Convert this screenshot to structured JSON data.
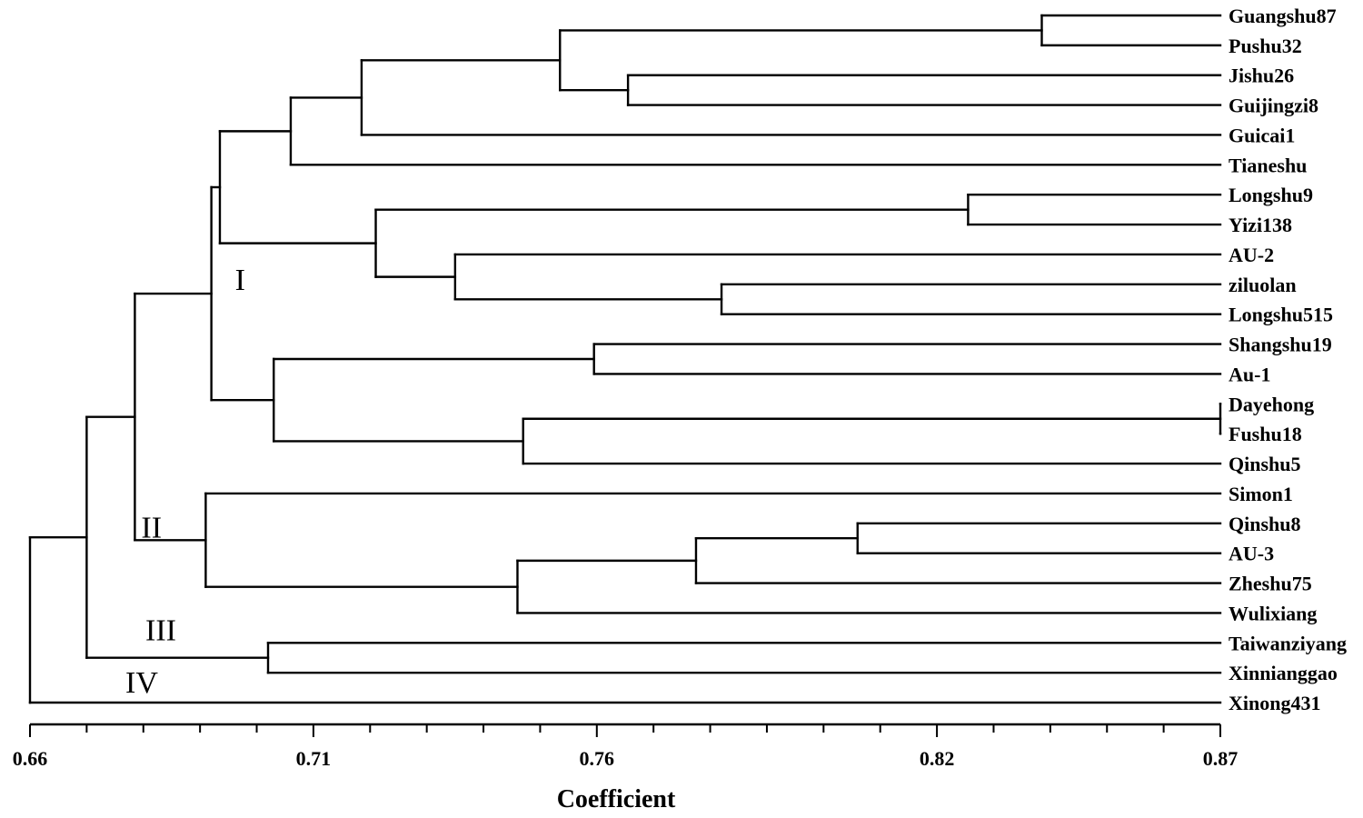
{
  "chart_data": {
    "type": "dendrogram",
    "title": "",
    "xlabel": "Coefficient",
    "ylabel": "",
    "xlim": [
      0.66,
      0.87
    ],
    "x_ticks": [
      "0.66",
      "0.71",
      "0.76",
      "0.82",
      "0.87"
    ],
    "x_tick_values": [
      0.66,
      0.71,
      0.76,
      0.82,
      0.87
    ],
    "minor_tick_step": 0.01,
    "leaves": [
      "Guangshu87",
      "Pushu32",
      "Jishu26",
      "Guijingzi8",
      "Guicai1",
      "Tianeshu",
      "Longshu9",
      "Yizi138",
      "AU-2",
      "ziluolan",
      "Longshu515",
      "Shangshu19",
      "Au-1",
      "Dayehong",
      "Fushu18",
      "Qinshu5",
      "Simon1",
      "Qinshu8",
      "AU-3",
      "Zheshu75",
      "Wulixiang",
      "Taiwanziyang",
      "Xinnianggao",
      "Xinong431"
    ],
    "merges": [
      {
        "children": [
          "Guangshu87",
          "Pushu32"
        ],
        "height": 0.8385
      },
      {
        "children": [
          "Jishu26",
          "Guijingzi8"
        ],
        "height": 0.7655
      },
      {
        "children": [
          0,
          1
        ],
        "height": 0.7535
      },
      {
        "children": [
          2,
          "Guicai1"
        ],
        "height": 0.7185
      },
      {
        "children": [
          3,
          "Tianeshu"
        ],
        "height": 0.706
      },
      {
        "children": [
          "Longshu9",
          "Yizi138"
        ],
        "height": 0.8255
      },
      {
        "children": [
          "ziluolan",
          "Longshu515"
        ],
        "height": 0.782
      },
      {
        "children": [
          "AU-2",
          6
        ],
        "height": 0.735
      },
      {
        "children": [
          5,
          7
        ],
        "height": 0.721
      },
      {
        "children": [
          4,
          8
        ],
        "height": 0.6935
      },
      {
        "children": [
          "Shangshu19",
          "Au-1"
        ],
        "height": 0.7595
      },
      {
        "children": [
          "Dayehong",
          "Fushu18"
        ],
        "height": 0.87
      },
      {
        "children": [
          11,
          "Qinshu5"
        ],
        "height": 0.747
      },
      {
        "children": [
          10,
          12
        ],
        "height": 0.703
      },
      {
        "children": [
          9,
          13
        ],
        "height": 0.692
      },
      {
        "children": [
          "Qinshu8",
          "AU-3"
        ],
        "height": 0.806
      },
      {
        "children": [
          15,
          "Zheshu75"
        ],
        "height": 0.7775
      },
      {
        "children": [
          16,
          "Wulixiang"
        ],
        "height": 0.746
      },
      {
        "children": [
          "Simon1",
          17
        ],
        "height": 0.691
      },
      {
        "children": [
          14,
          18
        ],
        "height": 0.6785
      },
      {
        "children": [
          "Taiwanziyang",
          "Xinnianggao"
        ],
        "height": 0.702
      },
      {
        "children": [
          19,
          20
        ],
        "height": 0.67
      },
      {
        "children": [
          21,
          "Xinong431"
        ],
        "height": 0.66
      }
    ],
    "cluster_labels": [
      {
        "text": "I",
        "node": 14
      },
      {
        "text": "II",
        "node": 18
      },
      {
        "text": "III",
        "node": 20
      },
      {
        "text": "IV",
        "leaf": "Xinong431"
      }
    ]
  }
}
